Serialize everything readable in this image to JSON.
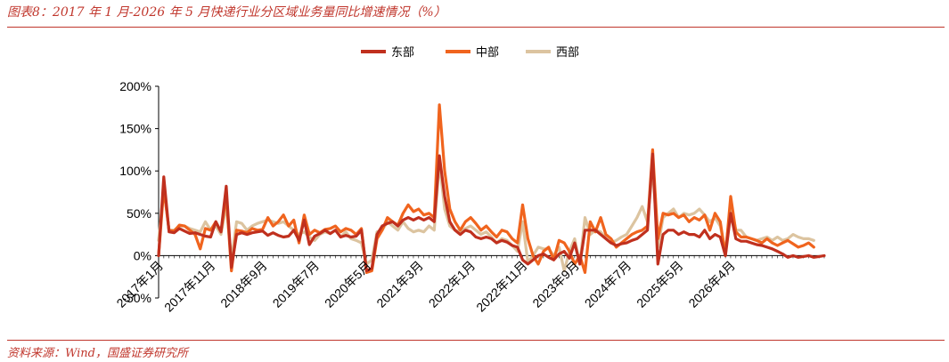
{
  "header": {
    "title": "图表8：2017 年 1 月-2026 年 5 月快递行业分区域业务量同比增速情况（%）"
  },
  "footer": {
    "source": "资料来源：Wind，国盛证券研究所"
  },
  "chart_data": {
    "type": "line",
    "title": "",
    "xlabel": "",
    "ylabel": "",
    "ylim": [
      -50,
      200
    ],
    "yticks": [
      "-50%",
      "0%",
      "50%",
      "100%",
      "150%",
      "200%"
    ],
    "x_start": "2017-01",
    "x_labels": [
      "2017年1月",
      "2017年11月",
      "2018年9月",
      "2019年7月",
      "2020年5月",
      "2021年3月",
      "2022年1月",
      "2022年11月",
      "2023年9月",
      "2024年7月",
      "2025年5月",
      "2026年4月"
    ],
    "legend_position": "top-center",
    "series": [
      {
        "name": "东部",
        "color": "#c0301e",
        "values": [
          0,
          93,
          28,
          27,
          32,
          29,
          26,
          27,
          25,
          23,
          22,
          40,
          28,
          82,
          -14,
          25,
          27,
          25,
          27,
          28,
          29,
          24,
          27,
          24,
          22,
          23,
          30,
          18,
          42,
          13,
          23,
          26,
          30,
          26,
          30,
          22,
          24,
          22,
          23,
          30,
          -18,
          -15,
          25,
          35,
          38,
          40,
          35,
          42,
          45,
          42,
          45,
          42,
          45,
          40,
          118,
          70,
          40,
          30,
          25,
          30,
          28,
          22,
          20,
          22,
          20,
          15,
          18,
          16,
          12,
          10,
          -5,
          -10,
          -5,
          0,
          2,
          -2,
          -5,
          2,
          5,
          -3,
          15,
          -10,
          30,
          30,
          30,
          25,
          20,
          15,
          12,
          14,
          15,
          18,
          20,
          25,
          30,
          120,
          -10,
          25,
          30,
          30,
          25,
          28,
          25,
          25,
          22,
          30,
          20,
          25,
          22,
          0,
          50,
          20,
          17,
          17,
          15,
          13,
          12,
          10,
          8,
          5,
          2,
          -2,
          0,
          -2,
          -1,
          0,
          -2,
          -1,
          0
        ]
      },
      {
        "name": "中部",
        "color": "#f0641e",
        "values": [
          0,
          80,
          30,
          29,
          36,
          35,
          30,
          25,
          8,
          32,
          30,
          40,
          28,
          72,
          -18,
          30,
          29,
          27,
          32,
          30,
          31,
          45,
          35,
          40,
          48,
          35,
          42,
          15,
          48,
          25,
          30,
          27,
          31,
          32,
          35,
          28,
          32,
          30,
          25,
          32,
          -20,
          -18,
          20,
          30,
          45,
          40,
          36,
          50,
          60,
          52,
          55,
          48,
          50,
          45,
          178,
          100,
          55,
          40,
          30,
          40,
          45,
          38,
          30,
          35,
          28,
          22,
          30,
          28,
          20,
          15,
          60,
          20,
          0,
          -10,
          5,
          10,
          -5,
          18,
          15,
          5,
          -10,
          0,
          -20,
          40,
          28,
          45,
          25,
          20,
          10,
          15,
          20,
          25,
          28,
          30,
          35,
          125,
          20,
          50,
          48,
          50,
          45,
          48,
          40,
          45,
          42,
          48,
          30,
          50,
          40,
          0,
          70,
          28,
          22,
          22,
          20,
          18,
          15,
          20,
          15,
          12,
          15,
          18,
          14,
          10,
          12,
          15,
          10
        ]
      },
      {
        "name": "西部",
        "color": "#dcc4a0",
        "values": [
          18,
          80,
          30,
          30,
          35,
          35,
          32,
          30,
          28,
          40,
          30,
          35,
          25,
          60,
          -5,
          40,
          38,
          30,
          35,
          38,
          40,
          42,
          40,
          38,
          40,
          35,
          30,
          25,
          28,
          22,
          18,
          25,
          28,
          26,
          30,
          22,
          28,
          20,
          18,
          15,
          -10,
          -5,
          28,
          30,
          40,
          35,
          30,
          40,
          32,
          28,
          30,
          28,
          35,
          30,
          110,
          55,
          35,
          30,
          28,
          32,
          35,
          30,
          25,
          28,
          22,
          15,
          20,
          18,
          12,
          5,
          40,
          -8,
          0,
          10,
          8,
          8,
          0,
          10,
          -18,
          5,
          20,
          -10,
          45,
          25,
          30,
          28,
          20,
          15,
          18,
          22,
          25,
          35,
          45,
          58,
          40,
          105,
          10,
          45,
          50,
          55,
          45,
          50,
          48,
          50,
          55,
          48,
          40,
          45,
          35,
          5,
          60,
          30,
          30,
          22,
          20,
          18,
          20,
          22,
          18,
          22,
          18,
          20,
          25,
          22,
          20,
          20,
          18
        ]
      }
    ]
  }
}
